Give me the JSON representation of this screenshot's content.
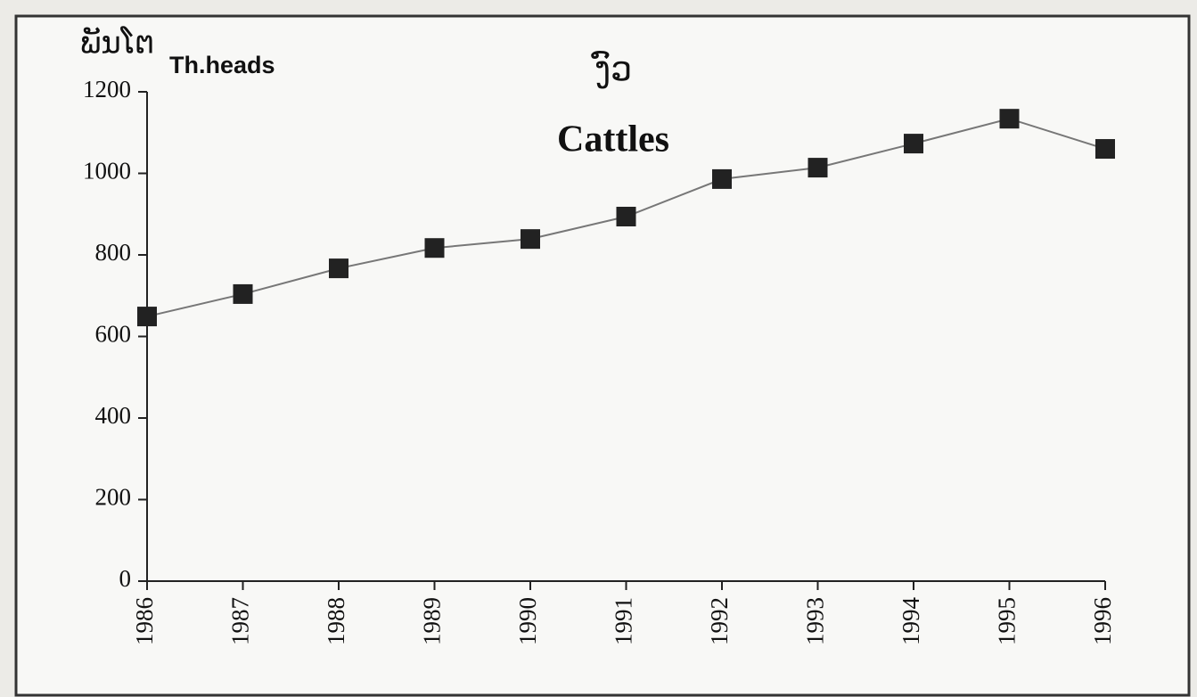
{
  "chart_data": {
    "type": "line",
    "title": "ງົວ",
    "subtitle": "Cattles",
    "y_label": "ພັນໂຕ",
    "y_unit": "Th.heads",
    "categories": [
      "1986",
      "1987",
      "1988",
      "1989",
      "1990",
      "1991",
      "1992",
      "1993",
      "1994",
      "1995",
      "1996"
    ],
    "series": [
      {
        "name": "Cattles",
        "color": "#222222",
        "values": [
          649,
          704,
          767,
          817,
          839,
          894,
          986,
          1014,
          1073,
          1134,
          1060
        ]
      }
    ],
    "ylim": [
      0,
      1200
    ],
    "yticks": [
      0,
      200,
      400,
      600,
      800,
      1000,
      1200
    ],
    "grid": false
  }
}
